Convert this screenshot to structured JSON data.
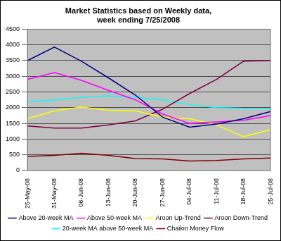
{
  "chart_data": {
    "type": "line",
    "title": [
      "Market Statistics based on Weekly data,",
      "week ending 7/25/2008"
    ],
    "categories": [
      "25-May-08",
      "31-May-08",
      "06-Jun-08",
      "13-Jun-08",
      "20-Jun-08",
      "27-Jun-08",
      "04-Jul-08",
      "11-Jul-08",
      "18-Jul-08",
      "25-Jul-08"
    ],
    "series": [
      {
        "name": "Above 20-week MA",
        "color": "#000080",
        "values": [
          3500,
          3930,
          3480,
          2950,
          2400,
          1700,
          1380,
          1480,
          1650,
          1880
        ]
      },
      {
        "name": "Above 50-week MA",
        "color": "#ff00ff",
        "values": [
          2900,
          3120,
          2870,
          2550,
          2250,
          1800,
          1500,
          1550,
          1600,
          1750
        ]
      },
      {
        "name": "Aroon Up-Trend",
        "color": "#ffff00",
        "values": [
          1650,
          1900,
          2020,
          1920,
          1900,
          1700,
          1650,
          1450,
          1080,
          1300
        ]
      },
      {
        "name": "Aroon Down-Trend",
        "color": "#800040",
        "values": [
          1420,
          1350,
          1350,
          1450,
          1580,
          1950,
          2450,
          2900,
          3480,
          3500
        ]
      },
      {
        "name": "20-week MA above 50-week MA",
        "color": "#00ffff",
        "values": [
          2180,
          2250,
          2330,
          2380,
          2330,
          2250,
          2100,
          2000,
          1980,
          1980
        ]
      },
      {
        "name": "Chaikin Money Flow",
        "color": "#800000",
        "values": [
          450,
          480,
          550,
          480,
          380,
          370,
          300,
          320,
          370,
          400
        ]
      }
    ],
    "ylim": [
      0,
      4500
    ],
    "yticks": [
      0,
      500,
      1000,
      1500,
      2000,
      2500,
      3000,
      3500,
      4000,
      4500
    ],
    "grid": true,
    "legend": "bottom"
  }
}
